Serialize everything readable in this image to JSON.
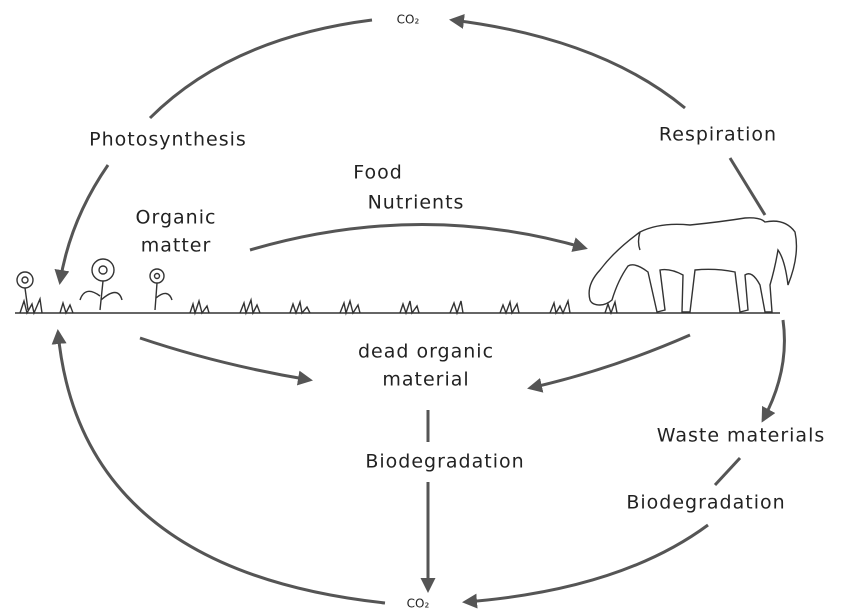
{
  "nodes": [
    {
      "label": [
        "CO₂"
      ]
    },
    {
      "label": [
        "Photosynthesis"
      ]
    },
    {
      "label": [
        "Respiration"
      ]
    },
    {
      "label": [
        "Food",
        "Nutrients"
      ]
    },
    {
      "label": [
        "Organic",
        "matter"
      ]
    },
    {
      "label": [
        "dead organic",
        "material"
      ]
    },
    {
      "label": [
        "Biodegradation"
      ]
    },
    {
      "label": [
        "Waste materials"
      ]
    },
    {
      "label": [
        "Biodegradation"
      ]
    },
    {
      "label": [
        "CO₂"
      ]
    }
  ]
}
